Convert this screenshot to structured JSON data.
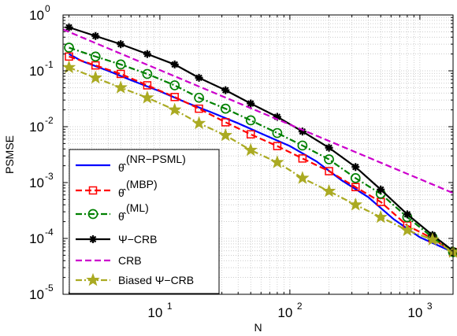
{
  "chart_data": {
    "type": "line",
    "xlabel": "N",
    "ylabel": "PSMSE",
    "xscale": "log",
    "yscale": "log",
    "xlim": [
      1.8,
      1800
    ],
    "ylim": [
      1e-05,
      1
    ],
    "grid": true,
    "legend_position": "bottom-left",
    "x_ticks": [
      {
        "value": 10,
        "base": "10",
        "exp": "1"
      },
      {
        "value": 100,
        "base": "10",
        "exp": "2"
      },
      {
        "value": 1000,
        "base": "10",
        "exp": "3"
      }
    ],
    "y_ticks": [
      {
        "value": 1,
        "base": "10",
        "exp": "0"
      },
      {
        "value": 0.1,
        "base": "10",
        "exp": "-1"
      },
      {
        "value": 0.01,
        "base": "10",
        "exp": "-2"
      },
      {
        "value": 0.001,
        "base": "10",
        "exp": "-3"
      },
      {
        "value": 0.0001,
        "base": "10",
        "exp": "-4"
      },
      {
        "value": 1e-05,
        "base": "10",
        "exp": "-5"
      }
    ],
    "series": [
      {
        "name": "NR-PSML",
        "legend_math": "θ̂",
        "legend_sup": "(NR−PSML)",
        "color": "#0000ff",
        "dash": "solid",
        "marker": "none",
        "x": [
          2,
          2.5,
          4,
          6,
          10,
          16,
          25,
          40,
          63,
          100,
          160,
          250,
          400,
          630,
          1000,
          1800
        ],
        "y": [
          0.2,
          0.15,
          0.1,
          0.068,
          0.043,
          0.027,
          0.018,
          0.0115,
          0.0072,
          0.0045,
          0.0024,
          0.0011,
          0.00055,
          0.00022,
          0.000105,
          5.7e-05
        ]
      },
      {
        "name": "MBP",
        "legend_math": "θ̂",
        "legend_sup": "(MBP)",
        "color": "#ff0000",
        "dash": "dash",
        "marker": "square",
        "x": [
          2,
          3.2,
          5,
          8,
          13,
          20,
          32,
          50,
          80,
          125,
          200,
          320,
          500,
          800,
          1250,
          1800
        ],
        "y": [
          0.18,
          0.125,
          0.088,
          0.055,
          0.034,
          0.021,
          0.012,
          0.0073,
          0.0045,
          0.0027,
          0.0016,
          0.00083,
          0.00045,
          0.00017,
          0.0001,
          5.7e-05
        ]
      },
      {
        "name": "ML",
        "legend_math": "θ̂",
        "legend_sup": "(ML)",
        "color": "#008000",
        "dash": "dashdot",
        "marker": "circle",
        "x": [
          2,
          3.2,
          5,
          8,
          13,
          20,
          32,
          50,
          80,
          125,
          200,
          320,
          500,
          800,
          1250,
          1800
        ],
        "y": [
          0.26,
          0.18,
          0.13,
          0.088,
          0.055,
          0.033,
          0.021,
          0.013,
          0.0077,
          0.0046,
          0.0026,
          0.0012,
          0.00063,
          0.00024,
          0.000105,
          5.7e-05
        ]
      },
      {
        "name": "Ψ−CRB",
        "legend_math": "",
        "legend_sup": "",
        "color": "#000000",
        "dash": "solid",
        "marker": "asterisk",
        "x": [
          2,
          3.2,
          5,
          8,
          13,
          20,
          32,
          50,
          80,
          125,
          200,
          320,
          500,
          800,
          1250,
          1800
        ],
        "y": [
          0.6,
          0.42,
          0.3,
          0.2,
          0.13,
          0.075,
          0.045,
          0.026,
          0.015,
          0.0082,
          0.0042,
          0.0019,
          0.00075,
          0.00027,
          0.000115,
          6e-05
        ]
      },
      {
        "name": "CRB",
        "legend_math": "",
        "legend_sup": "",
        "color": "#cc00cc",
        "dash": "dash",
        "marker": "none",
        "x": [
          1.8,
          1800
        ],
        "y": [
          0.55,
          0.00065
        ]
      },
      {
        "name": "Biased Ψ−CRB",
        "legend_math": "",
        "legend_sup": "",
        "color": "#aaaa22",
        "dash": "dashdot",
        "marker": "star",
        "x": [
          2,
          3.2,
          5,
          8,
          13,
          20,
          32,
          50,
          80,
          125,
          200,
          320,
          500,
          800,
          1250,
          1800
        ],
        "y": [
          0.115,
          0.075,
          0.05,
          0.033,
          0.02,
          0.0115,
          0.007,
          0.0038,
          0.0023,
          0.0012,
          0.0007,
          0.0004,
          0.00024,
          0.00014,
          9.5e-05,
          5.7e-05
        ]
      }
    ]
  }
}
